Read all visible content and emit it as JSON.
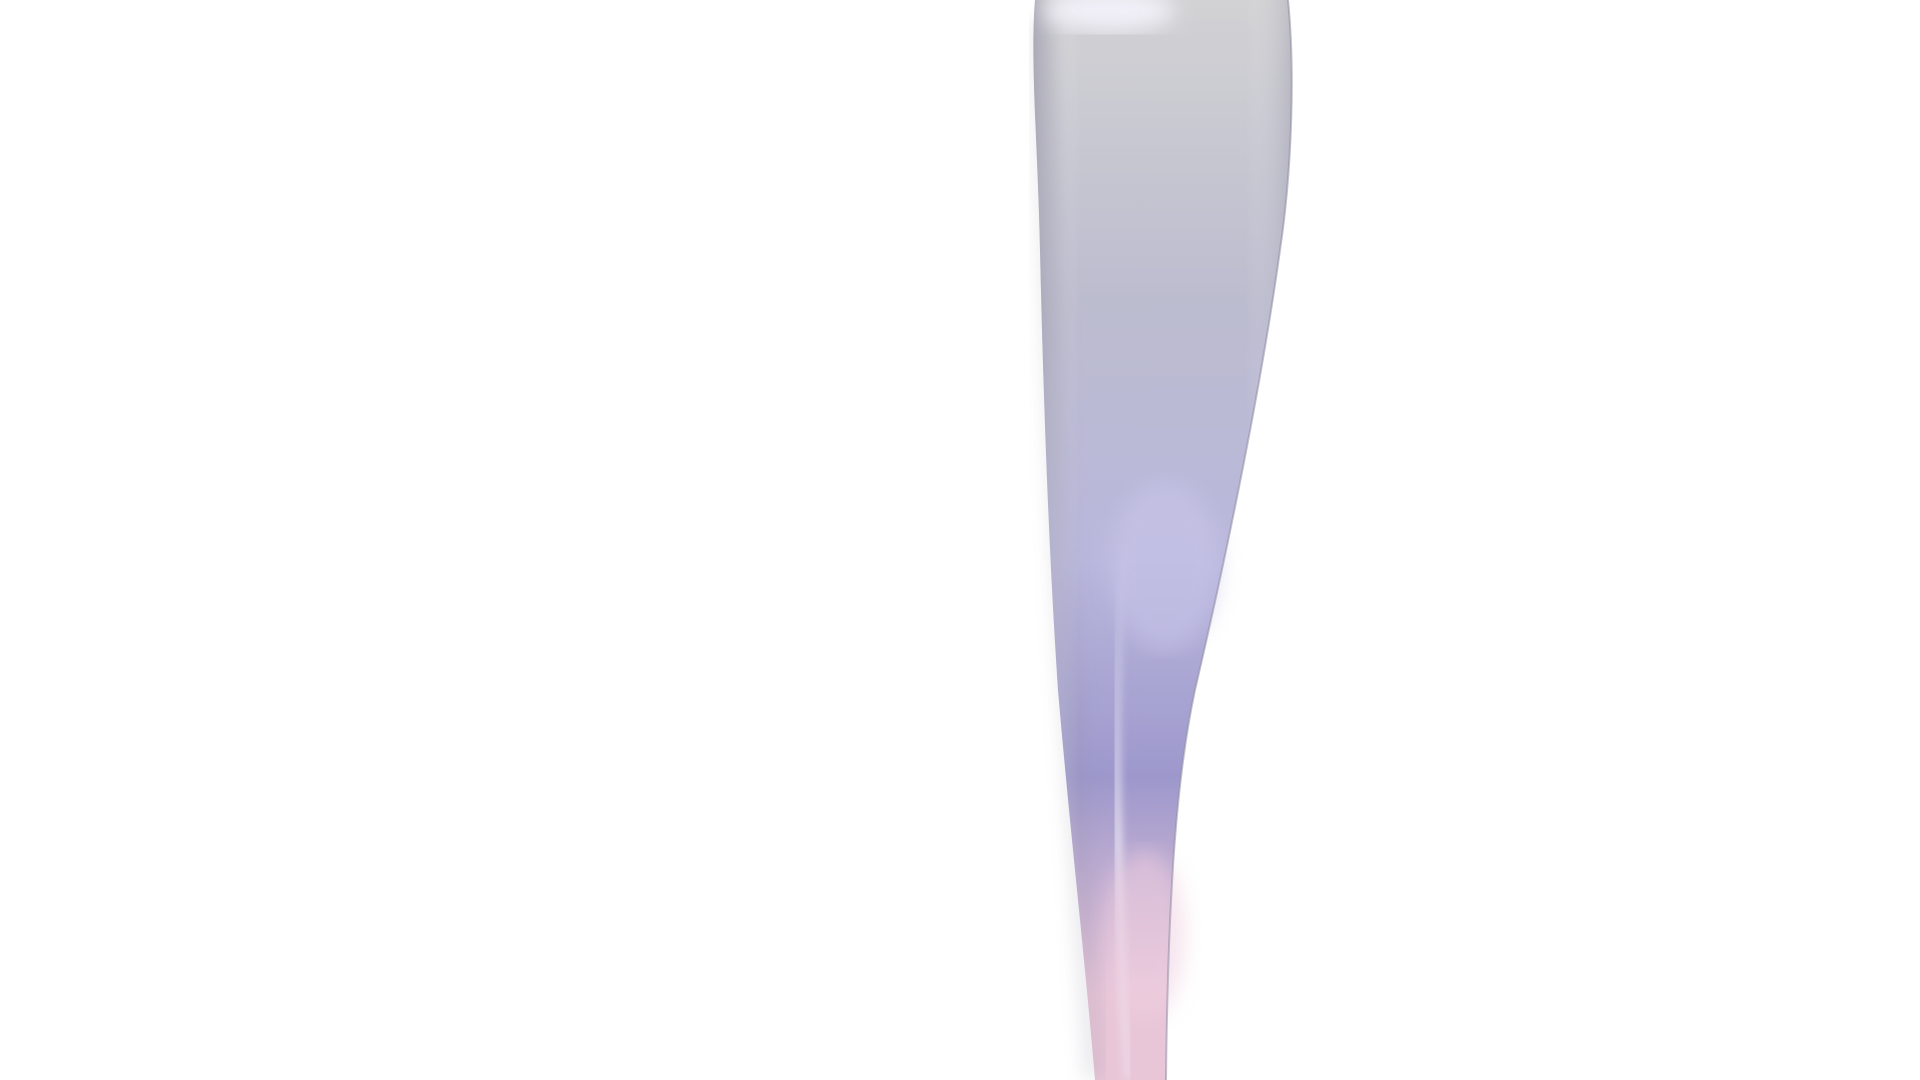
{
  "scene": {
    "background_color": "#ffffff",
    "artwork": {
      "kind": "abstract-ribbon",
      "colors": {
        "top": "#d2d2d4",
        "upper_mid": "#bcbccf",
        "mid": "#b9b7dc",
        "lower_mid": "#9d98cc",
        "bottom": "#e8c6d8",
        "edge_shadow": "#8e8c9e",
        "highlight": "#f4f2fb"
      }
    }
  }
}
